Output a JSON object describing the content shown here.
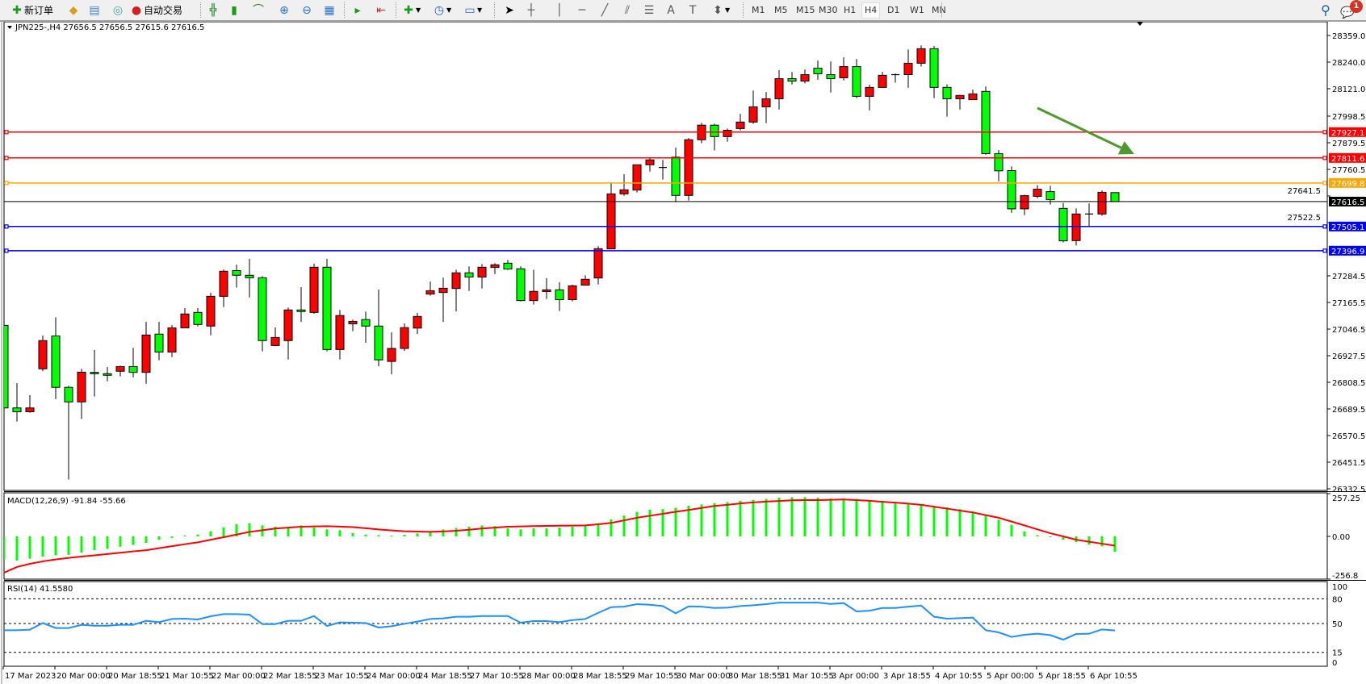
{
  "toolbar": {
    "new_order_label": "新订单",
    "autotrading_label": "自动交易",
    "icons": [
      "new-order-icon",
      "market-watch-icon",
      "data-window-icon",
      "signals-icon",
      "autotrading-icon",
      "bar-chart-icon",
      "candlesticks-icon",
      "line-chart-icon",
      "zoom-in-icon",
      "zoom-out-icon",
      "tile-windows-icon",
      "chart-shift-icon",
      "autoscroll-icon",
      "indicators-icon",
      "periods-icon",
      "templates-icon",
      "cursor-icon",
      "crosshair-icon",
      "vertical-line-icon",
      "horizontal-line-icon",
      "trendline-icon",
      "equidistant-channel-icon",
      "fibonacci-icon",
      "text-icon",
      "text-label-icon",
      "arrows-icon",
      "search-icon",
      "notifications-icon"
    ],
    "timeframes": [
      "M1",
      "M5",
      "M15",
      "M30",
      "H1",
      "H4",
      "D1",
      "W1",
      "MN"
    ],
    "active_timeframe": "H4",
    "notification_count": "1"
  },
  "chart_header": "JPN225-,H4  27656.5 27656.5 27615.6 27616.5",
  "colors": {
    "bull": "#ff0000",
    "bear": "#00ff00",
    "macd_hist": "#00ff00",
    "macd_signal": "#ff0000",
    "rsi": "#1e90ff",
    "arrow": "#4e9a2e"
  },
  "chart_data": {
    "type": "candlestick",
    "symbol": "JPN225-",
    "timeframe": "H4",
    "ohlc_format": [
      "open",
      "high",
      "low",
      "close"
    ],
    "candles": [
      [
        27063,
        27063,
        26679,
        26694
      ],
      [
        26694,
        26805,
        26633,
        26677
      ],
      [
        26677,
        26751,
        26673,
        26694
      ],
      [
        26869,
        27018,
        26859,
        26995
      ],
      [
        27016,
        27099,
        26733,
        26786
      ],
      [
        26786,
        26793,
        26374,
        26721
      ],
      [
        26721,
        26869,
        26645,
        26854
      ],
      [
        26853,
        26953,
        26745,
        26847
      ],
      [
        26847,
        26877,
        26813,
        26840
      ],
      [
        26858,
        26883,
        26835,
        26879
      ],
      [
        26879,
        26963,
        26831,
        26853
      ],
      [
        26853,
        27079,
        26802,
        27020
      ],
      [
        27024,
        27079,
        26907,
        26944
      ],
      [
        26944,
        27064,
        26921,
        27052
      ],
      [
        27052,
        27140,
        27052,
        27114
      ],
      [
        27121,
        27140,
        27058,
        27067
      ],
      [
        27060,
        27209,
        27019,
        27193
      ],
      [
        27193,
        27313,
        27145,
        27305
      ],
      [
        27308,
        27335,
        27232,
        27287
      ],
      [
        27287,
        27360,
        27188,
        27276
      ],
      [
        27276,
        27283,
        26947,
        26995
      ],
      [
        26973,
        27054,
        26970,
        27009
      ],
      [
        26995,
        27143,
        26911,
        27132
      ],
      [
        27132,
        27234,
        27079,
        27125
      ],
      [
        27121,
        27339,
        27115,
        27323
      ],
      [
        27323,
        27360,
        26947,
        26955
      ],
      [
        26955,
        27132,
        26911,
        27107
      ],
      [
        27070,
        27089,
        27037,
        27081
      ],
      [
        27089,
        27125,
        26985,
        27060
      ],
      [
        27060,
        27223,
        26880,
        26909
      ],
      [
        26902,
        27032,
        26844,
        26960
      ],
      [
        26960,
        27072,
        26949,
        27053
      ],
      [
        27051,
        27119,
        27025,
        27103
      ],
      [
        27203,
        27259,
        27196,
        27218
      ],
      [
        27210,
        27277,
        27079,
        27229
      ],
      [
        27228,
        27312,
        27126,
        27298
      ],
      [
        27298,
        27327,
        27217,
        27279
      ],
      [
        27279,
        27337,
        27228,
        27323
      ],
      [
        27322,
        27341,
        27292,
        27334
      ],
      [
        27341,
        27356,
        27311,
        27315
      ],
      [
        27316,
        27327,
        27170,
        27174
      ],
      [
        27174,
        27312,
        27156,
        27215
      ],
      [
        27214,
        27274,
        27181,
        27222
      ],
      [
        27222,
        27256,
        27127,
        27178
      ],
      [
        27178,
        27245,
        27170,
        27240
      ],
      [
        27243,
        27287,
        27243,
        27269
      ],
      [
        27275,
        27417,
        27246,
        27406
      ],
      [
        27405,
        27700,
        27405,
        27651
      ],
      [
        27651,
        27739,
        27643,
        27669
      ],
      [
        27668,
        27781,
        27657,
        27781
      ],
      [
        27781,
        27811,
        27751,
        27803
      ],
      [
        27769,
        27803,
        27715,
        27769
      ],
      [
        27815,
        27858,
        27614,
        27644
      ],
      [
        27644,
        27901,
        27621,
        27893
      ],
      [
        27893,
        27969,
        27877,
        27958
      ],
      [
        27958,
        27965,
        27845,
        27907
      ],
      [
        27907,
        27943,
        27884,
        27935
      ],
      [
        27943,
        28009,
        27935,
        27972
      ],
      [
        27972,
        28113,
        27964,
        28040
      ],
      [
        28040,
        28106,
        27967,
        28076
      ],
      [
        28076,
        28204,
        28028,
        28166
      ],
      [
        28166,
        28196,
        28140,
        28155
      ],
      [
        28155,
        28207,
        28145,
        28184
      ],
      [
        28213,
        28247,
        28161,
        28188
      ],
      [
        28184,
        28243,
        28104,
        28166
      ],
      [
        28170,
        28261,
        28158,
        28220
      ],
      [
        28220,
        28254,
        28079,
        28087
      ],
      [
        28087,
        28139,
        28024,
        28127
      ],
      [
        28127,
        28196,
        28127,
        28181
      ],
      [
        28184,
        28189,
        28148,
        28184
      ],
      [
        28184,
        28297,
        28125,
        28235
      ],
      [
        28235,
        28315,
        28220,
        28300
      ],
      [
        28300,
        28312,
        28079,
        28127
      ],
      [
        28127,
        28141,
        27996,
        28076
      ],
      [
        28076,
        28094,
        28028,
        28091
      ],
      [
        28072,
        28117,
        28072,
        28098
      ],
      [
        28109,
        28131,
        27826,
        27831
      ],
      [
        27831,
        27847,
        27707,
        27754
      ],
      [
        27755,
        27774,
        27566,
        27584
      ],
      [
        27584,
        27647,
        27556,
        27643
      ],
      [
        27640,
        27690,
        27631,
        27672
      ],
      [
        27661,
        27687,
        27603,
        27625
      ],
      [
        27586,
        27611,
        27434,
        27441
      ],
      [
        27442,
        27586,
        27420,
        27561
      ],
      [
        27561,
        27608,
        27502,
        27561
      ],
      [
        27561,
        27666,
        27553,
        27658
      ],
      [
        27656.5,
        27656.5,
        27615.6,
        27616.5
      ]
    ],
    "x_tick_labels": [
      "17 Mar 2023",
      "20 Mar 00:00",
      "20 Mar 18:55",
      "21 Mar 10:55",
      "22 Mar 00:00",
      "22 Mar 18:55",
      "23 Mar 10:55",
      "24 Mar 00:00",
      "24 Mar 18:55",
      "27 Mar 10:55",
      "28 Mar 00:00",
      "28 Mar 18:55",
      "29 Mar 10:55",
      "30 Mar 00:00",
      "30 Mar 18:55",
      "31 Mar 10:55",
      "3 Apr 00:00",
      "3 Apr 18:55",
      "4 Apr 10:55",
      "5 Apr 00:00",
      "5 Apr 18:55",
      "6 Apr 10:55"
    ],
    "x_tick_every_n_bars": 4,
    "y_tick_labels": [
      "28359.0",
      "28240.0",
      "28121.0",
      "27998.5",
      "27879.5",
      "27760.5",
      "27641.5",
      "27522.5",
      "27284.5",
      "27165.5",
      "27046.5",
      "26927.5",
      "26808.5",
      "26689.5",
      "26570.5",
      "26451.5",
      "26332.5"
    ],
    "ylim": [
      26332.5,
      28359.0
    ],
    "current_price": {
      "value": 27616.5,
      "label": "27616.5",
      "color": "#000000"
    },
    "levels": [
      {
        "value": 27927.1,
        "label": "27927.1",
        "color": "#ff0000"
      },
      {
        "value": 27811.6,
        "label": "27811.6",
        "color": "#ff0000"
      },
      {
        "value": 27699.8,
        "label": "27699.8",
        "color": "#ffa500"
      },
      {
        "value": 27505.1,
        "label": "27505.1",
        "color": "#0000ff"
      },
      {
        "value": 27396.9,
        "label": "27396.9",
        "color": "#0000ff"
      }
    ],
    "annotations": [
      {
        "type": "arrow",
        "direction": "down-right",
        "from": {
          "bar": 80,
          "price": 28035
        },
        "to": {
          "bar": 87.5,
          "price": 27829
        },
        "color": "#4e9a2e"
      }
    ],
    "grid": false,
    "indicators": [
      {
        "name": "MACD",
        "label": "MACD(12,26,9) -91.84 -55.66",
        "y_tick_labels": [
          "257.25",
          "0.00",
          "-256.8"
        ],
        "ylim": [
          -256.8,
          257.25
        ],
        "main": [
          -140,
          -145,
          -134,
          -122,
          -114,
          -111,
          -98,
          -83,
          -75,
          -62,
          -51,
          -39,
          -20,
          -9,
          6,
          11,
          31,
          53,
          73,
          78,
          66,
          58,
          53,
          66,
          53,
          42,
          37,
          20,
          11,
          8,
          5,
          10,
          18,
          31,
          42,
          50,
          58,
          66,
          62,
          48,
          42,
          48,
          48,
          53,
          58,
          64,
          78,
          103,
          125,
          147,
          161,
          164,
          172,
          184,
          192,
          200,
          206,
          214,
          219,
          225,
          233,
          236,
          236,
          233,
          228,
          228,
          225,
          219,
          214,
          206,
          200,
          192,
          184,
          175,
          164,
          150,
          125,
          100,
          70,
          30,
          8,
          -5,
          -20,
          -35,
          -50,
          -60,
          -91.84
        ],
        "signal": [
          -218,
          -184,
          -165,
          -150,
          -139,
          -129,
          -121,
          -114,
          -106,
          -98,
          -90,
          -83,
          -71,
          -59,
          -47,
          -36,
          -20,
          -5,
          11,
          27,
          37,
          47,
          53,
          58,
          60,
          61,
          59,
          56,
          49,
          42,
          36,
          31,
          29,
          27,
          30,
          34,
          40,
          47,
          53,
          58,
          60,
          62,
          63,
          64,
          65,
          66,
          73,
          81,
          96,
          112,
          124,
          136,
          148,
          159,
          171,
          183,
          190,
          198,
          204,
          209,
          213,
          217,
          218,
          218,
          220,
          222,
          218,
          214,
          208,
          203,
          197,
          190,
          178,
          167,
          155,
          144,
          128,
          112,
          89,
          66,
          42,
          19,
          0,
          -20,
          -32,
          -44,
          -55.66
        ]
      },
      {
        "name": "RSI",
        "label": "RSI(14) 41.5580",
        "y_tick_labels": [
          "100",
          "80",
          "50",
          "15",
          "0"
        ],
        "levels": [
          80,
          50,
          15
        ],
        "ylim": [
          0,
          100
        ],
        "values": [
          41.8,
          41.8,
          42.5,
          50.6,
          44.5,
          44.5,
          48.4,
          47.3,
          47.3,
          48.4,
          48.4,
          53.3,
          51.6,
          55.5,
          55.9,
          54.9,
          58.8,
          61.4,
          61.4,
          60.8,
          49.3,
          49.3,
          53.3,
          53.3,
          59.1,
          47.0,
          51.3,
          51.0,
          50.6,
          45.1,
          46.7,
          49.7,
          52.3,
          55.5,
          56.2,
          58.2,
          58.2,
          59.1,
          59.1,
          59.1,
          51.0,
          52.9,
          52.9,
          51.6,
          54.2,
          55.5,
          63.0,
          69.9,
          70.5,
          73.5,
          72.8,
          71.2,
          62.4,
          70.8,
          70.5,
          68.9,
          69.2,
          71.2,
          72.2,
          73.5,
          75.4,
          75.4,
          75.4,
          75.4,
          73.8,
          74.8,
          64.7,
          65.6,
          68.9,
          68.9,
          70.5,
          71.8,
          58.2,
          55.9,
          56.5,
          57.2,
          41.8,
          39.2,
          33.7,
          36.3,
          37.6,
          35.9,
          30.4,
          37.2,
          37.6,
          42.8,
          41.558
        ]
      }
    ]
  }
}
